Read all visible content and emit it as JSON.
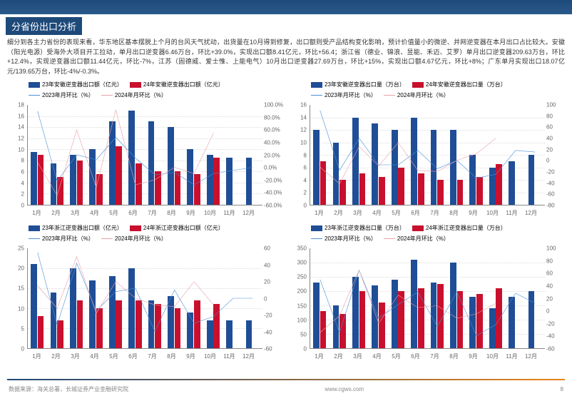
{
  "header": {
    "section_title": "分省份出口分析"
  },
  "description": "细分到各主力省份的表现来看，华东地区基本摆脱上个月的台风天气扰动，出货量在10月得到修复，出口额则受产品结构变化影响，预计价值量小的微逆、并网逆变器在本月出口占比较大。安徽（阳光电源）受海外大项目开工拉动，单月出口逆变器6.46万台，环比+39.0%，实现出口额8.41亿元，环比+56.4；浙江省（德业、锦浪、昱能、禾迈、艾罗）单月出口逆变器209.63万台，环比+12.4%，实现逆变器出口额11.44亿元，环比-7%，江苏（固德威、爱士惟、上能电气）10月出口逆变器27.69万台，环比+15%，实现出口额4.67亿元，环比+8%；广东单月实现出口18.07亿元/139.65万台，环比-4%/-0.3%。",
  "months": [
    "1月",
    "2月",
    "3月",
    "4月",
    "5月",
    "6月",
    "7月",
    "8月",
    "9月",
    "10月",
    "11月",
    "12月"
  ],
  "colors": {
    "bar23": "#1f4e96",
    "bar24": "#c8102e",
    "line23": "#4a90d9",
    "line24": "#e8a0a8",
    "text": "#666",
    "grid": "#ddd",
    "bg": "#ffffff"
  },
  "charts": [
    {
      "legend": [
        {
          "type": "bar",
          "color": "#1f4e96",
          "label": "23年安徽逆变器出口额（亿元）"
        },
        {
          "type": "bar",
          "color": "#c8102e",
          "label": "24年安徽逆变器出口额（亿元）"
        },
        {
          "type": "line",
          "color": "#4a90d9",
          "label": "2023年月环比（%）"
        },
        {
          "type": "line",
          "color": "#e8a0a8",
          "label": "2024年月环比（%）"
        }
      ],
      "ylim": [
        0,
        18
      ],
      "ystep": 2,
      "ylim_r": [
        -60,
        100
      ],
      "ystep_r": 20,
      "ylim_r_fmt": "pct",
      "bars23": [
        9.5,
        7.5,
        9,
        10,
        15,
        17,
        15,
        14,
        10,
        9,
        8.5,
        8.5
      ],
      "bars24": [
        9,
        5,
        8,
        5.5,
        10.5,
        7.5,
        6,
        6,
        5.5,
        8.5,
        null,
        null
      ],
      "line23": [
        90,
        -22,
        20,
        12,
        48,
        15,
        -12,
        -8,
        -28,
        -10,
        -5,
        0
      ],
      "line24": [
        8,
        -45,
        60,
        -32,
        92,
        -28,
        -20,
        0,
        -10,
        55,
        null,
        null
      ]
    },
    {
      "legend": [
        {
          "type": "bar",
          "color": "#1f4e96",
          "label": "23年安徽逆变器出口量（万台）"
        },
        {
          "type": "bar",
          "color": "#c8102e",
          "label": "24年安徽逆变器出口量（万台）"
        },
        {
          "type": "line",
          "color": "#4a90d9",
          "label": "2023年月环比（%）"
        },
        {
          "type": "line",
          "color": "#e8a0a8",
          "label": "2024年月环比（%）"
        }
      ],
      "ylim": [
        0,
        16
      ],
      "ystep": 2,
      "ylim_r": [
        -80,
        100
      ],
      "ystep_r": 20,
      "ylim_r_fmt": "num",
      "bars23": [
        12,
        10,
        14,
        13,
        12,
        14,
        12,
        12,
        8,
        6,
        7,
        8
      ],
      "bars24": [
        7,
        4,
        5,
        4.5,
        6,
        5,
        4,
        4,
        4.5,
        6.5,
        null,
        null
      ],
      "line23": [
        90,
        -18,
        40,
        -8,
        -8,
        18,
        -15,
        0,
        -32,
        -25,
        18,
        15
      ],
      "line24": [
        -12,
        -42,
        25,
        -10,
        32,
        -18,
        -20,
        0,
        12,
        40,
        null,
        null
      ]
    },
    {
      "legend": [
        {
          "type": "bar",
          "color": "#1f4e96",
          "label": "23年浙江逆变器出口额（亿元）"
        },
        {
          "type": "bar",
          "color": "#c8102e",
          "label": "24年浙江逆变器出口额（亿元）"
        },
        {
          "type": "line",
          "color": "#4a90d9",
          "label": "2023年月环比（%）"
        },
        {
          "type": "line",
          "color": "#e8a0a8",
          "label": "2024年月环比（%）"
        }
      ],
      "ylim": [
        0,
        25
      ],
      "ystep": 5,
      "ylim_r": [
        -60,
        60
      ],
      "ystep_r": 20,
      "ylim_r_fmt": "num",
      "bars23": [
        21,
        14,
        20,
        17,
        18,
        20,
        12,
        13,
        9,
        7,
        7,
        7
      ],
      "bars24": [
        8,
        7,
        12,
        10,
        12,
        12,
        11,
        10,
        12,
        11,
        null,
        null
      ],
      "line23": [
        55,
        -32,
        42,
        -15,
        8,
        12,
        -40,
        10,
        -30,
        -22,
        0,
        0
      ],
      "line24": [
        15,
        -12,
        50,
        -18,
        20,
        0,
        -8,
        -10,
        20,
        -8,
        null,
        null
      ]
    },
    {
      "legend": [
        {
          "type": "bar",
          "color": "#1f4e96",
          "label": "23年浙江逆变器出口量（万台）"
        },
        {
          "type": "bar",
          "color": "#c8102e",
          "label": "24年浙江逆变器出口量（万台）"
        },
        {
          "type": "line",
          "color": "#4a90d9",
          "label": "2023年月环比（%）"
        },
        {
          "type": "line",
          "color": "#e8a0a8",
          "label": "2024年月环比（%）"
        }
      ],
      "ylim": [
        0,
        350
      ],
      "ystep": 50,
      "ylim_r": [
        -60,
        100
      ],
      "ystep_r": 20,
      "ylim_r_fmt": "num",
      "bars23": [
        230,
        150,
        250,
        220,
        240,
        310,
        230,
        300,
        180,
        140,
        180,
        200
      ],
      "bars24": [
        130,
        120,
        200,
        160,
        200,
        210,
        225,
        200,
        190,
        210,
        null,
        null
      ],
      "line23": [
        50,
        -35,
        65,
        -12,
        10,
        30,
        -25,
        30,
        -40,
        -22,
        28,
        12
      ],
      "line24": [
        -35,
        -8,
        65,
        -20,
        25,
        5,
        8,
        -12,
        -5,
        12,
        null,
        null
      ]
    }
  ],
  "footer": {
    "source": "数据来源：海关总署，长城证券产业金融研究院",
    "url": "www.cgws.com",
    "page": "8"
  }
}
